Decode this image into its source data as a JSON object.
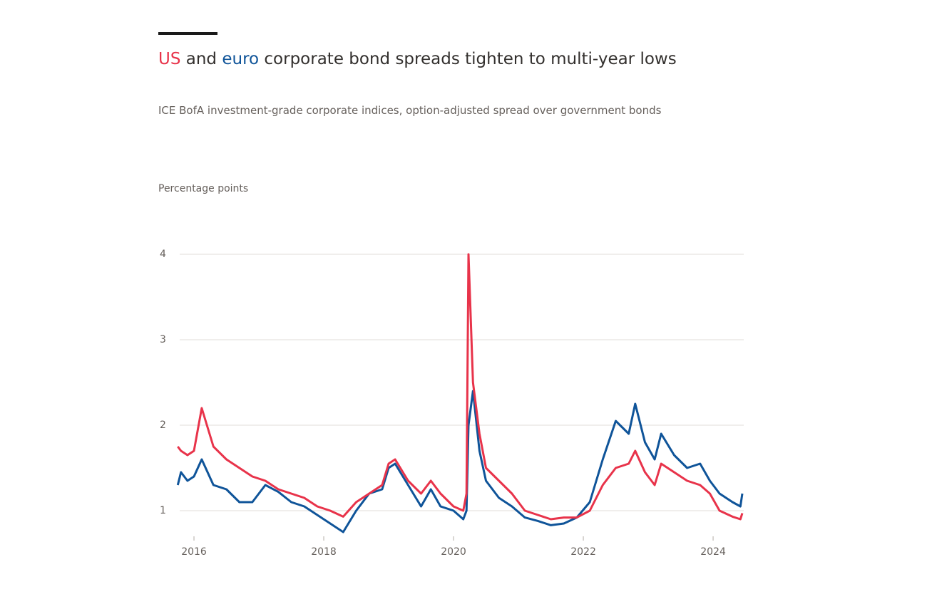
{
  "chart_data": {
    "type": "line",
    "title": [
      " and ",
      " corporate bond spreads tighten to multi-year lows"
    ],
    "subtitle": "ICE BofA investment-grade corporate indices, option-adjusted spread over government bonds",
    "y_label": "Percentage points",
    "x": [
      2015.75,
      2015.8,
      2015.9,
      2016.0,
      2016.12,
      2016.3,
      2016.5,
      2016.7,
      2016.9,
      2017.1,
      2017.3,
      2017.5,
      2017.7,
      2017.9,
      2018.1,
      2018.3,
      2018.5,
      2018.7,
      2018.9,
      2019.0,
      2019.1,
      2019.3,
      2019.5,
      2019.65,
      2019.8,
      2020.0,
      2020.15,
      2020.2,
      2020.23,
      2020.3,
      2020.4,
      2020.5,
      2020.7,
      2020.9,
      2021.1,
      2021.3,
      2021.5,
      2021.7,
      2021.9,
      2022.1,
      2022.3,
      2022.5,
      2022.7,
      2022.8,
      2022.95,
      2023.1,
      2023.2,
      2023.4,
      2023.6,
      2023.8,
      2023.95,
      2024.1,
      2024.3,
      2024.42,
      2024.45
    ],
    "series": [
      {
        "name": "US",
        "color": "#e8334a",
        "values": [
          1.75,
          1.7,
          1.65,
          1.7,
          2.2,
          1.75,
          1.6,
          1.5,
          1.4,
          1.35,
          1.25,
          1.2,
          1.15,
          1.05,
          1.0,
          0.93,
          1.1,
          1.2,
          1.3,
          1.55,
          1.6,
          1.35,
          1.2,
          1.35,
          1.2,
          1.05,
          1.0,
          1.2,
          4.0,
          2.5,
          1.9,
          1.5,
          1.35,
          1.2,
          1.0,
          0.95,
          0.9,
          0.92,
          0.92,
          1.0,
          1.3,
          1.5,
          1.55,
          1.7,
          1.45,
          1.3,
          1.55,
          1.45,
          1.35,
          1.3,
          1.2,
          1.0,
          0.93,
          0.9,
          0.97
        ]
      },
      {
        "name": "euro",
        "color": "#0f5499",
        "values": [
          1.3,
          1.45,
          1.35,
          1.4,
          1.6,
          1.3,
          1.25,
          1.1,
          1.1,
          1.3,
          1.22,
          1.1,
          1.05,
          0.95,
          0.85,
          0.75,
          1.0,
          1.2,
          1.25,
          1.5,
          1.55,
          1.3,
          1.05,
          1.25,
          1.05,
          1.0,
          0.9,
          1.0,
          2.0,
          2.4,
          1.7,
          1.35,
          1.15,
          1.05,
          0.92,
          0.88,
          0.83,
          0.85,
          0.92,
          1.1,
          1.6,
          2.05,
          1.9,
          2.25,
          1.8,
          1.6,
          1.9,
          1.65,
          1.5,
          1.55,
          1.35,
          1.2,
          1.1,
          1.05,
          1.2
        ]
      }
    ],
    "xlim": [
      2015.78,
      2024.45
    ],
    "xticks": [
      2016,
      2018,
      2020,
      2022,
      2024
    ],
    "ylim": [
      0.7,
      4
    ],
    "yticks": [
      1,
      2,
      3,
      4
    ],
    "grid": true
  }
}
